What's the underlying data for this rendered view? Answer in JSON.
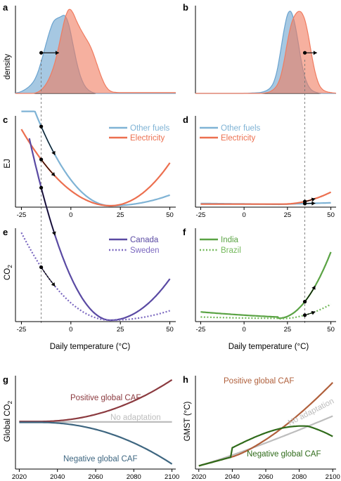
{
  "figure": {
    "panel_labels": [
      "a",
      "b",
      "c",
      "d",
      "e",
      "f",
      "g",
      "h"
    ],
    "shared_xlabel": "Daily temperature (°C)"
  },
  "colors": {
    "blue_density": "#6aa3cf",
    "red_density": "#f07b5f",
    "other_fuels": "#7fb3d5",
    "electricity": "#ec6f4f",
    "canada": "#5a4aa3",
    "sweden": "#7b68c0",
    "india": "#5aa344",
    "brazil": "#74b95c",
    "positive_caf_g": "#8b3a3f",
    "negative_caf_g": "#3e6680",
    "no_adaptation": "#bdbdbd",
    "positive_caf_h": "#b0603c",
    "negative_caf_h": "#2f6b1a"
  },
  "chart_data": [
    {
      "panel": "a",
      "type": "area",
      "ylabel": "density",
      "xlim": [
        -28,
        53
      ],
      "x": [
        -28,
        -25,
        -22,
        -20,
        -18,
        -16,
        -14,
        -12,
        -10,
        -8,
        -6,
        -4,
        -2,
        0,
        2,
        4,
        6,
        8,
        10,
        12,
        14,
        16,
        18,
        20,
        23,
        26,
        30,
        35,
        40,
        45,
        50,
        53
      ],
      "series": [
        {
          "values": [
            0,
            0.02,
            0.06,
            0.1,
            0.16,
            0.28,
            0.45,
            0.62,
            0.78,
            0.88,
            0.86,
            0.92,
            0.9,
            0.7,
            0.45,
            0.25,
            0.12,
            0.05,
            0.02,
            0,
            0,
            0,
            0,
            0,
            0,
            0,
            0,
            0,
            0,
            0,
            0,
            0
          ]
        },
        {
          "values": [
            0,
            0,
            0,
            0,
            0,
            0.02,
            0.06,
            0.12,
            0.22,
            0.35,
            0.55,
            0.78,
            0.97,
            1.0,
            0.88,
            0.78,
            0.7,
            0.62,
            0.55,
            0.42,
            0.28,
            0.15,
            0.06,
            0.02,
            0.01,
            0.01,
            0.01,
            0.01,
            0.01,
            0.01,
            0.01,
            0.01
          ]
        }
      ],
      "marker": {
        "from": -15,
        "to": -6,
        "y": 0.47
      }
    },
    {
      "panel": "b",
      "type": "area",
      "xlim": [
        -28,
        53
      ],
      "x": [
        -28,
        0,
        10,
        14,
        16,
        18,
        20,
        22,
        24,
        26,
        28,
        30,
        32,
        34,
        36,
        38,
        40,
        42,
        44,
        47,
        50,
        53
      ],
      "series": [
        {
          "values": [
            0,
            0,
            0.01,
            0.04,
            0.08,
            0.16,
            0.35,
            0.62,
            0.85,
            1.0,
            0.92,
            0.75,
            0.48,
            0.25,
            0.12,
            0.05,
            0.02,
            0.01,
            0,
            0,
            0,
            0
          ]
        },
        {
          "values": [
            0,
            0,
            0,
            0.01,
            0.03,
            0.06,
            0.12,
            0.25,
            0.48,
            0.72,
            0.87,
            0.93,
            0.97,
            0.92,
            0.8,
            0.55,
            0.32,
            0.15,
            0.06,
            0.02,
            0.01,
            0
          ]
        }
      ],
      "marker": {
        "from": 35,
        "to": 42,
        "y": 0.47
      }
    },
    {
      "panel": "c",
      "type": "line",
      "ylabel": "EJ",
      "xlim": [
        -28,
        53
      ],
      "series": [
        {
          "name": "Other fuels",
          "fn": "quad",
          "k": 0.00072,
          "x0": 20,
          "y0": 0,
          "left": -25,
          "right": 50,
          "rise": 0.18
        },
        {
          "name": "Electricity",
          "fn": "quad",
          "k": 0.00042,
          "x0": 20,
          "y0": 0,
          "left": -25,
          "right": 50
        }
      ],
      "markers": [
        {
          "series": 0,
          "x": -15,
          "to": -8
        },
        {
          "series": 1,
          "x": -15,
          "to": -8
        }
      ]
    },
    {
      "panel": "d",
      "type": "line",
      "xlim": [
        -28,
        53
      ],
      "series": [
        {
          "name": "Other fuels",
          "fn": "lin",
          "left": -25,
          "right": 50
        },
        {
          "name": "Electricity",
          "fn": "flat",
          "left": -25,
          "right": 50
        }
      ],
      "markers": [
        {
          "series": 0,
          "x": 35,
          "to": 41
        },
        {
          "series": 1,
          "x": 35,
          "to": 41
        }
      ]
    },
    {
      "panel": "e",
      "type": "line",
      "ylabel": "CO2",
      "xlim": [
        -28,
        53
      ],
      "series": [
        {
          "name": "Canada",
          "style": "solid",
          "left": -21,
          "right": 50
        },
        {
          "name": "Sweden",
          "style": "dotted",
          "left": -25,
          "right": 50
        }
      ],
      "markers": [
        {
          "series": 0,
          "x": -15,
          "to": -8
        },
        {
          "series": 1,
          "x": -15,
          "to": -8
        }
      ]
    },
    {
      "panel": "f",
      "type": "line",
      "xlim": [
        -28,
        53
      ],
      "series": [
        {
          "name": "India",
          "style": "solid",
          "left": -25,
          "right": 50
        },
        {
          "name": "Brazil",
          "style": "dotted",
          "left": -25,
          "right": 50
        }
      ],
      "markers": [
        {
          "series": 0,
          "x": 35,
          "to": 41
        },
        {
          "series": 1,
          "x": 35,
          "to": 41
        }
      ]
    },
    {
      "panel": "g",
      "type": "line",
      "ylabel": "Global CO2",
      "xlim": [
        2018,
        2102
      ],
      "xticks": [
        2020,
        2040,
        2060,
        2080,
        2100
      ],
      "series": [
        {
          "name": "Positive global CAF"
        },
        {
          "name": "No adaptation"
        },
        {
          "name": "Negative global CAF"
        }
      ]
    },
    {
      "panel": "h",
      "type": "line",
      "ylabel": "GMST (°C)",
      "xlim": [
        2018,
        2102
      ],
      "xticks": [
        2020,
        2040,
        2060,
        2080,
        2100
      ],
      "series": [
        {
          "name": "Positive global CAF"
        },
        {
          "name": "No adaptation"
        },
        {
          "name": "Negative global CAF"
        }
      ]
    }
  ],
  "temp_ticks": [
    "-25",
    "0",
    "25",
    "50"
  ],
  "year_ticks": [
    "2020",
    "2040",
    "2060",
    "2080",
    "2100"
  ],
  "labels": {
    "density": "density",
    "ej": "EJ",
    "co2_main": "CO",
    "co2_sub": "2",
    "global_co2_main": "Global CO",
    "global_co2_sub": "2",
    "gmst": "GMST (°C)",
    "other_fuels": "Other fuels",
    "electricity": "Electricity",
    "canada": "Canada",
    "sweden": "Sweden",
    "india": "India",
    "brazil": "Brazil",
    "positive_caf": "Positive global CAF",
    "negative_caf": "Negative global CAF",
    "no_adaptation": "No adaptation"
  }
}
